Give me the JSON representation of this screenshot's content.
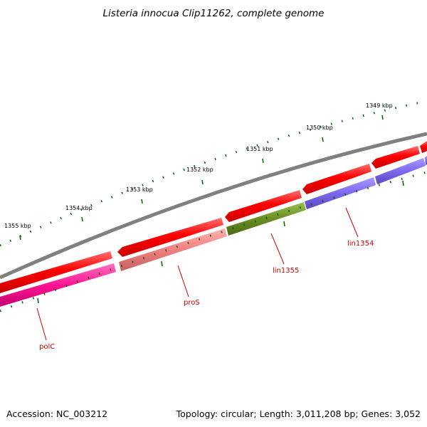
{
  "title": "Listeria innocua Clip11262, complete genome",
  "footer": {
    "accession": "Accession: NC_003212",
    "summary": "Topology: circular; Length: 3,011,208 bp; Genes: 3,052"
  },
  "scale_labels": [
    "1355 kbp",
    "1354 kbp",
    "1353 kbp",
    "1352 kbp",
    "1351 kbp",
    "1350 kbp",
    "1349 kbp"
  ],
  "gene_labels": [
    "polC",
    "proS",
    "lin1355",
    "lin1354"
  ],
  "colors": {
    "backbone": "#808080",
    "cds": "#ff0000",
    "polC": "#ff1493",
    "proS": "#f08080",
    "lin1355": "#6b8e23",
    "lin1354": "#7b68ee",
    "ticks": "#006400",
    "label": "#cc0000"
  }
}
